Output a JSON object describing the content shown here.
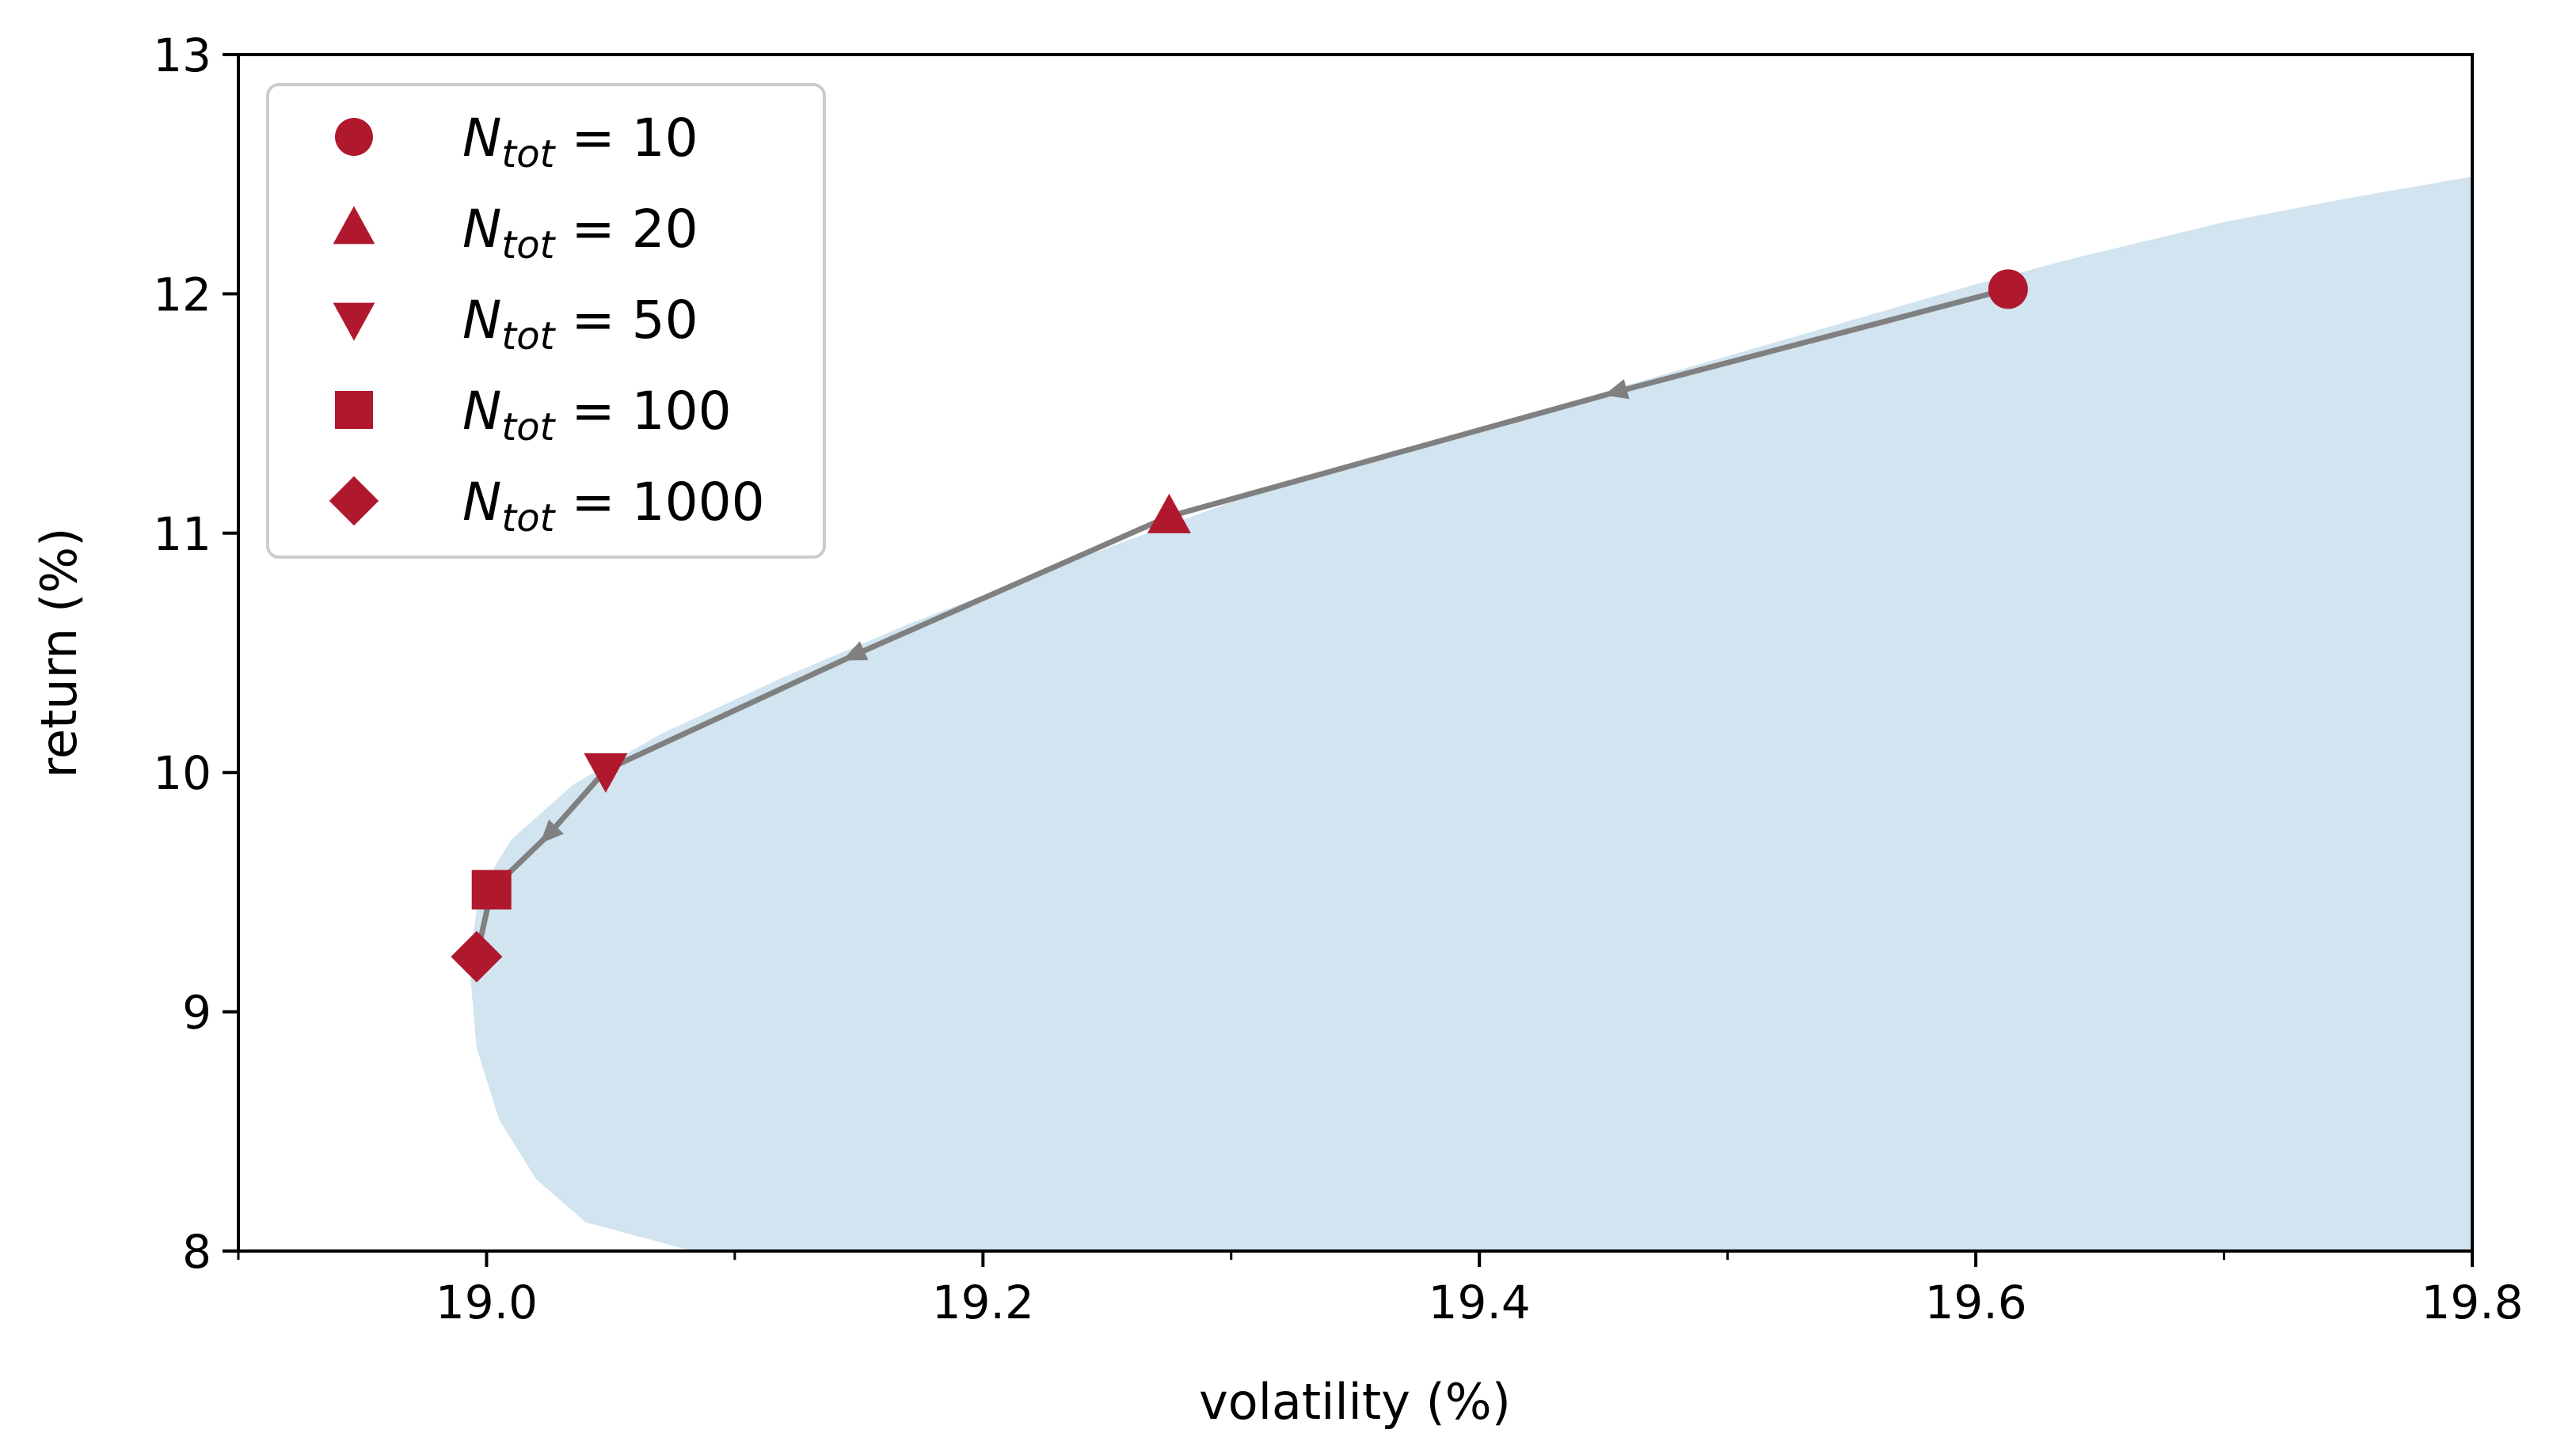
{
  "chart_data": {
    "type": "scatter",
    "title": "",
    "xlabel": "volatility (%)",
    "ylabel": "return (%)",
    "xlim": [
      18.9,
      19.8
    ],
    "ylim": [
      8,
      13
    ],
    "xticks": [
      19.0,
      19.2,
      19.4,
      19.6,
      19.8
    ],
    "xtick_labels": [
      "19.0",
      "19.2",
      "19.4",
      "19.6",
      "19.8"
    ],
    "xminor_ticks": [
      18.9,
      19.1,
      19.3,
      19.5,
      19.7
    ],
    "yticks": [
      8,
      9,
      10,
      11,
      12,
      13
    ],
    "ytick_labels": [
      "8",
      "9",
      "10",
      "11",
      "12",
      "13"
    ],
    "grid": false,
    "legend_position": "top-left",
    "feasible_region": {
      "color": "#d1e4f0",
      "boundary": [
        [
          19.083,
          8.0
        ],
        [
          19.04,
          8.12
        ],
        [
          19.02,
          8.3
        ],
        [
          19.005,
          8.55
        ],
        [
          18.996,
          8.85
        ],
        [
          18.993,
          9.2
        ],
        [
          18.997,
          9.5
        ],
        [
          19.01,
          9.72
        ],
        [
          19.035,
          9.95
        ],
        [
          19.07,
          10.16
        ],
        [
          19.12,
          10.4
        ],
        [
          19.17,
          10.62
        ],
        [
          19.24,
          10.9
        ],
        [
          19.3,
          11.13
        ],
        [
          19.38,
          11.37
        ],
        [
          19.46,
          11.62
        ],
        [
          19.54,
          11.86
        ],
        [
          19.6,
          12.04
        ],
        [
          19.64,
          12.15
        ],
        [
          19.7,
          12.3
        ],
        [
          19.75,
          12.4
        ],
        [
          19.8,
          12.49
        ]
      ]
    },
    "path": {
      "color": "#808080",
      "points": [
        [
          19.613,
          12.02
        ],
        [
          19.455,
          11.59
        ],
        [
          19.275,
          11.07
        ],
        [
          19.148,
          10.49
        ],
        [
          19.048,
          10.01
        ],
        [
          19.025,
          9.74
        ],
        [
          19.002,
          9.51
        ],
        [
          18.996,
          9.23
        ]
      ],
      "arrows_at": [
        [
          19.455,
          11.59
        ],
        [
          19.148,
          10.49
        ],
        [
          19.025,
          9.74
        ]
      ]
    },
    "series": [
      {
        "name": "10",
        "marker": "circle",
        "color": "#b0182e",
        "x": 19.613,
        "y": 12.02
      },
      {
        "name": "20",
        "marker": "triangle-up",
        "color": "#b0182e",
        "x": 19.275,
        "y": 11.07
      },
      {
        "name": "50",
        "marker": "triangle-down",
        "color": "#b0182e",
        "x": 19.048,
        "y": 10.01
      },
      {
        "name": "100",
        "marker": "square",
        "color": "#b0182e",
        "x": 19.002,
        "y": 9.51
      },
      {
        "name": "1000",
        "marker": "diamond",
        "color": "#b0182e",
        "x": 18.996,
        "y": 9.23
      }
    ],
    "legend": {
      "prefix": "N",
      "subscript": "tot",
      "equals": " = "
    }
  }
}
